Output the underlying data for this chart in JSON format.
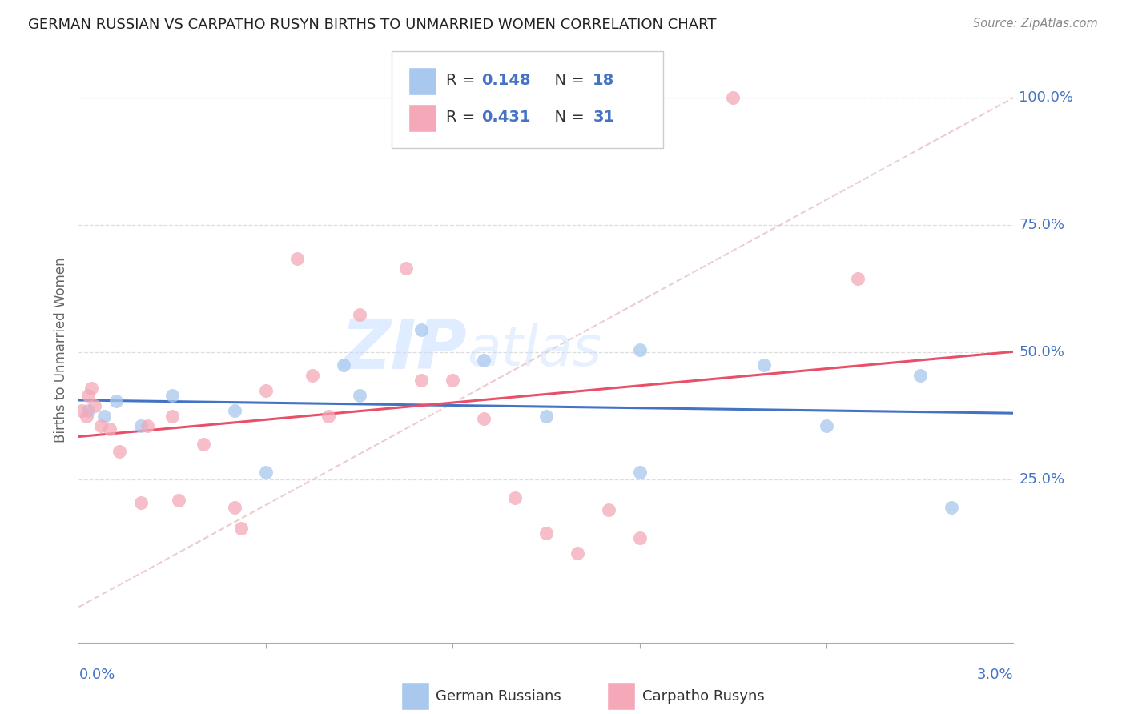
{
  "title": "GERMAN RUSSIAN VS CARPATHO RUSYN BIRTHS TO UNMARRIED WOMEN CORRELATION CHART",
  "source": "Source: ZipAtlas.com",
  "ylabel": "Births to Unmarried Women",
  "ytick_vals": [
    0.25,
    0.5,
    0.75,
    1.0
  ],
  "ytick_labels": [
    "25.0%",
    "50.0%",
    "75.0%",
    "100.0%"
  ],
  "xmin": 0.0,
  "xmax": 0.03,
  "ymin": -0.07,
  "ymax": 1.08,
  "scatter_color_gr": "#A8C8EE",
  "scatter_color_cr": "#F4A8B8",
  "trend_color_gr": "#4472C4",
  "trend_color_cr": "#E8506A",
  "diag_color": "#E8C0C8",
  "watermark_zip": "#C8DEFF",
  "watermark_atlas": "#C8DEFF",
  "title_color": "#222222",
  "source_color": "#888888",
  "axis_label_color": "#4472C4",
  "ylabel_color": "#666666",
  "legend_r_color": "#4472C4",
  "legend_n_color": "#4472C4",
  "grid_color": "#DDDDDD",
  "gr_x": [
    0.0003,
    0.0008,
    0.0012,
    0.002,
    0.003,
    0.005,
    0.006,
    0.0085,
    0.009,
    0.011,
    0.013,
    0.015,
    0.018,
    0.018,
    0.022,
    0.024,
    0.027,
    0.028
  ],
  "gr_y": [
    0.385,
    0.375,
    0.405,
    0.355,
    0.415,
    0.385,
    0.265,
    0.475,
    0.415,
    0.545,
    0.485,
    0.375,
    0.265,
    0.505,
    0.475,
    0.355,
    0.455,
    0.195
  ],
  "cr_x": [
    0.0001,
    0.00025,
    0.0003,
    0.0004,
    0.0005,
    0.0007,
    0.001,
    0.0013,
    0.002,
    0.0022,
    0.003,
    0.0032,
    0.004,
    0.005,
    0.0052,
    0.006,
    0.007,
    0.0075,
    0.008,
    0.009,
    0.0105,
    0.011,
    0.012,
    0.013,
    0.014,
    0.015,
    0.016,
    0.017,
    0.018,
    0.021,
    0.025
  ],
  "cr_y": [
    0.385,
    0.375,
    0.415,
    0.43,
    0.395,
    0.355,
    0.35,
    0.305,
    0.205,
    0.355,
    0.375,
    0.21,
    0.32,
    0.195,
    0.155,
    0.425,
    0.685,
    0.455,
    0.375,
    0.575,
    0.665,
    0.445,
    0.445,
    0.37,
    0.215,
    0.145,
    0.105,
    0.19,
    0.135,
    1.0,
    0.645
  ]
}
